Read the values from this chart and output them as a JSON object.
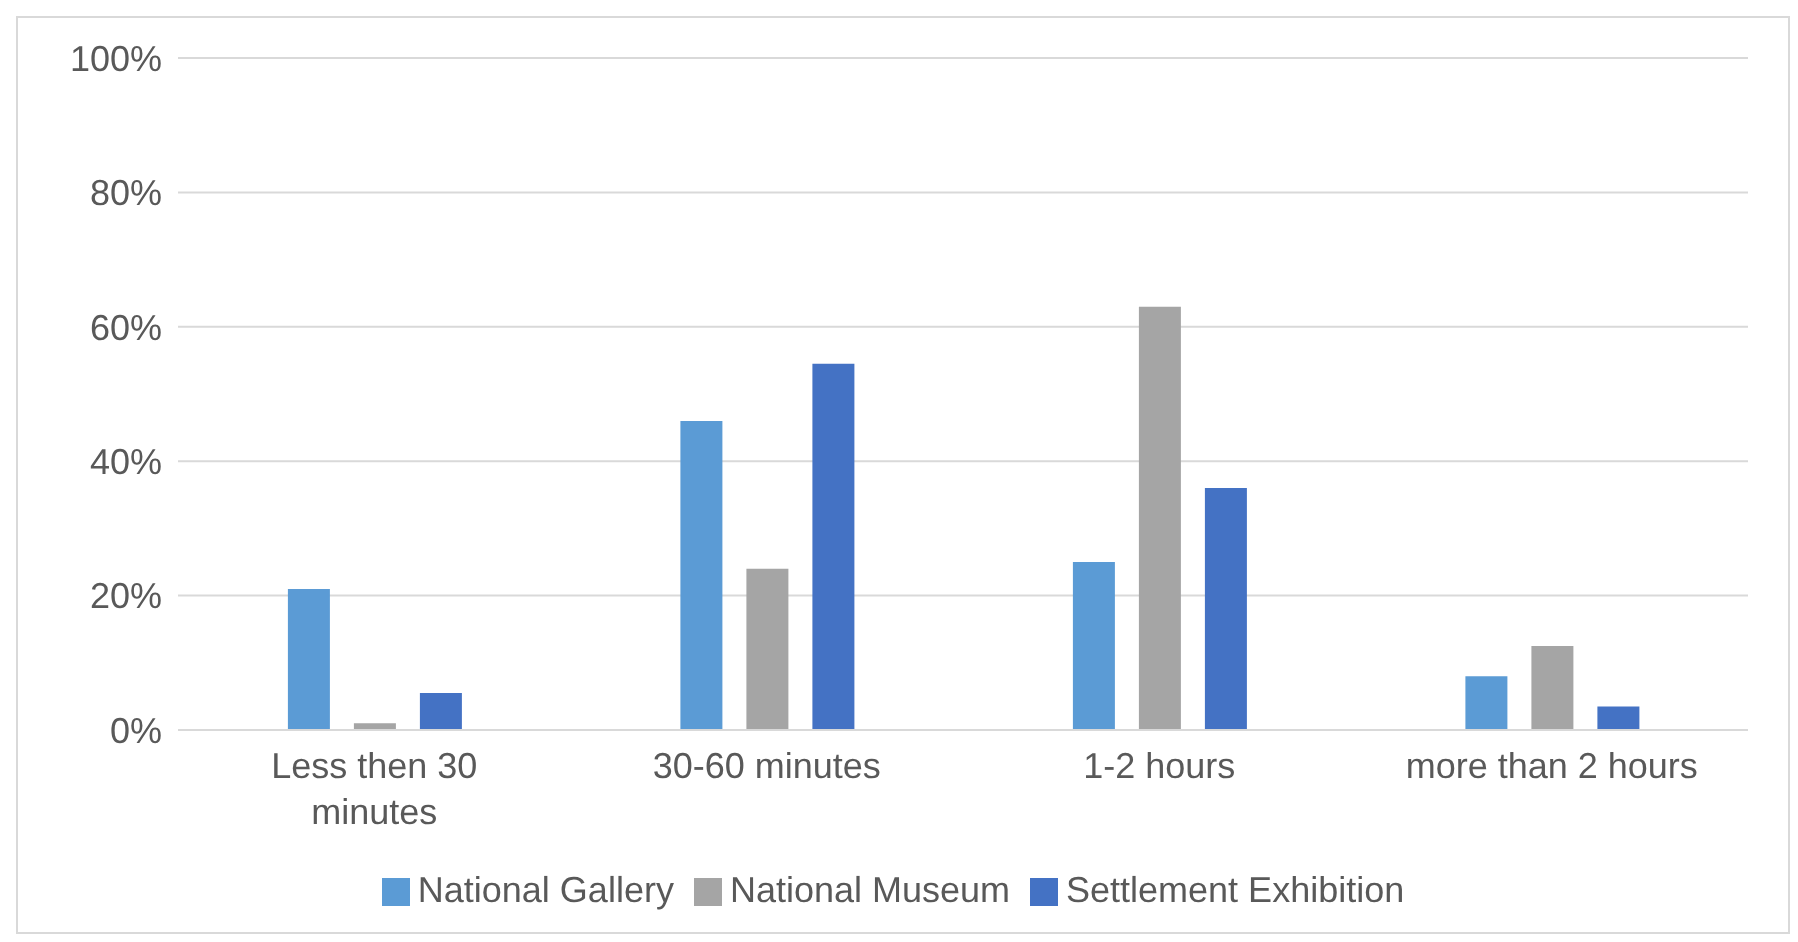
{
  "chart_data": {
    "type": "bar",
    "categories": [
      "Less then 30 minutes",
      "30-60 minutes",
      "1-2 hours",
      "more than 2 hours"
    ],
    "series": [
      {
        "name": "National Gallery",
        "color": "#5b9bd5",
        "values": [
          21,
          46,
          25,
          8
        ]
      },
      {
        "name": "National Museum",
        "color": "#a5a5a5",
        "values": [
          1,
          24,
          63,
          12.5
        ]
      },
      {
        "name": "Settlement Exhibition",
        "color": "#4472c4",
        "values": [
          5.5,
          54.5,
          36,
          3.5
        ]
      }
    ],
    "ylim": [
      0,
      100
    ],
    "yticks": [
      {
        "value": 0,
        "label": "0%"
      },
      {
        "value": 20,
        "label": "20%"
      },
      {
        "value": 40,
        "label": "40%"
      },
      {
        "value": 60,
        "label": "60%"
      },
      {
        "value": 80,
        "label": "80%"
      },
      {
        "value": 100,
        "label": "100%"
      }
    ],
    "grid": "y",
    "legend": "bottom"
  }
}
